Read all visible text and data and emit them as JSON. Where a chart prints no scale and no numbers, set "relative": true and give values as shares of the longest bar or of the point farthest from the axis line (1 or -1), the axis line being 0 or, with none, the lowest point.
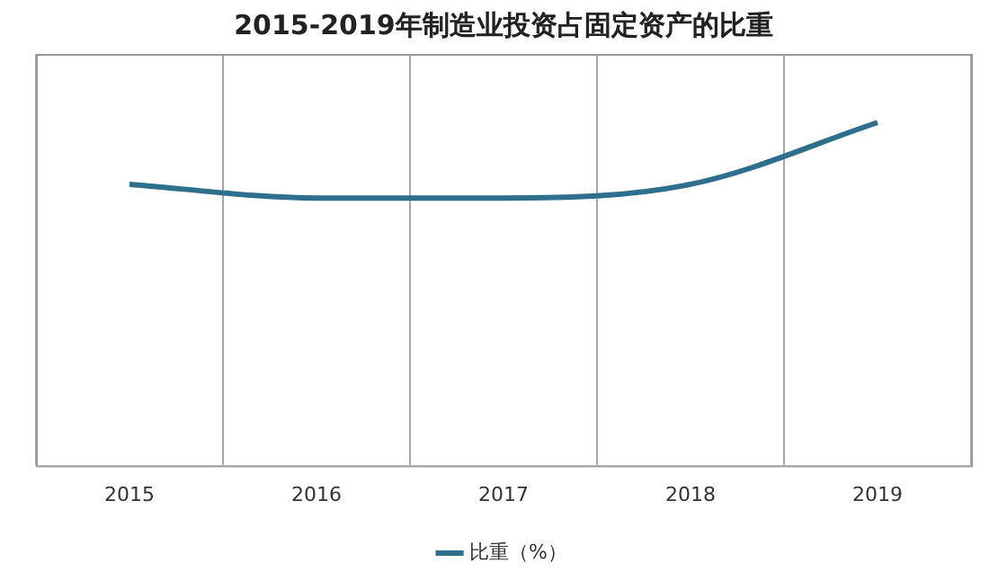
{
  "chart_data": {
    "type": "line",
    "title": "2015-2019年制造业投资占固定资产的比重",
    "categories": [
      "2015",
      "2016",
      "2017",
      "2018",
      "2019"
    ],
    "series": [
      {
        "name": "比重（%）",
        "color": "#2e6f8e",
        "values": [
          0.82,
          0.78,
          0.78,
          0.82,
          1
        ]
      }
    ],
    "relative": true,
    "grid": "x",
    "legend": "bottom",
    "marker": "none",
    "line_style": "solid"
  }
}
